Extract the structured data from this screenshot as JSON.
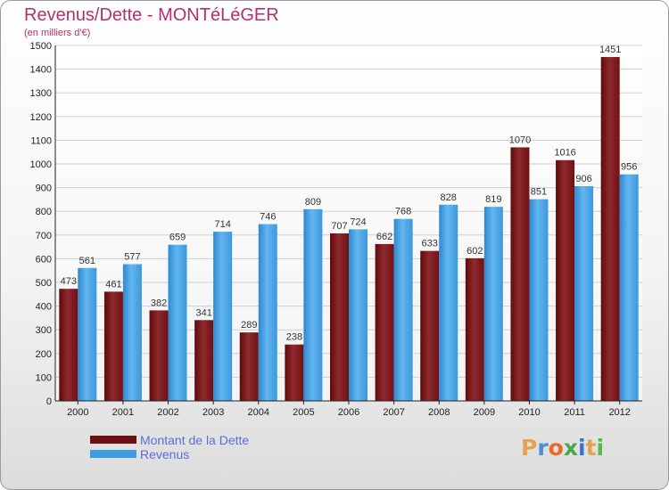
{
  "header": {
    "title": "Revenus/Dette - MONTéLéGER",
    "subtitle": "(en milliers d'€)"
  },
  "colors": {
    "title": "#b4306a",
    "dette": "#7a1418",
    "revenus": "#3f9ee0",
    "legend_text": "#5b6ddb",
    "grid": "#cfcfcf"
  },
  "legend": {
    "items": [
      {
        "label": "Montant de la Dette",
        "color": "#6b0f12"
      },
      {
        "label": "Revenus",
        "color": "#3f9ee0"
      }
    ]
  },
  "logo": {
    "text": "Proxiti",
    "letter_colors": [
      "#e6a24a",
      "#4a8fd6",
      "#e66a2a",
      "#4aa84a",
      "#3a6fd0",
      "#e6a24a",
      "#5ab84a"
    ]
  },
  "chart_data": {
    "type": "bar",
    "title": "Revenus/Dette - MONTéLéGER",
    "subtitle": "(en milliers d'€)",
    "xlabel": "",
    "ylabel": "",
    "ylim": [
      0,
      1500
    ],
    "yticks": [
      0,
      100,
      200,
      300,
      400,
      500,
      600,
      700,
      800,
      900,
      1000,
      1100,
      1200,
      1300,
      1400,
      1500
    ],
    "grid": true,
    "legend_position": "bottom-left",
    "categories": [
      "2000",
      "2001",
      "2002",
      "2003",
      "2004",
      "2005",
      "2006",
      "2007",
      "2008",
      "2009",
      "2010",
      "2011",
      "2012"
    ],
    "series": [
      {
        "name": "Montant de la Dette",
        "values": [
          473,
          461,
          382,
          341,
          289,
          238,
          707,
          662,
          633,
          602,
          1070,
          1016,
          1451
        ]
      },
      {
        "name": "Revenus",
        "values": [
          561,
          577,
          659,
          714,
          746,
          809,
          724,
          768,
          828,
          819,
          851,
          906,
          956
        ]
      }
    ]
  }
}
